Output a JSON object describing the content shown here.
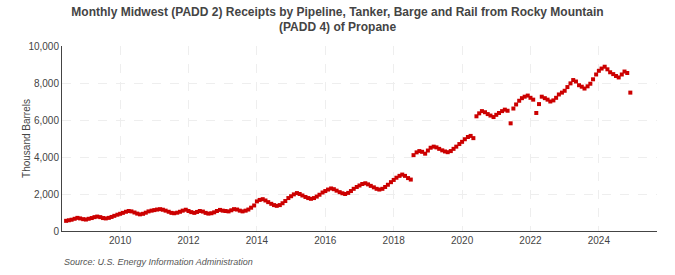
{
  "chart_data": {
    "type": "scatter",
    "title": "Monthly Midwest (PADD 2) Receipts by Pipeline, Tanker, Barge and Rail from Rocky Mountain\n(PADD 4) of Propane",
    "ylabel": "Thousand Barrels",
    "annotations": [
      "Source: U.S. Energy Information Administration"
    ],
    "color": "#cc0000",
    "marker": "square",
    "grid": true,
    "xlim": [
      2008.3,
      2025.7
    ],
    "xticks": [
      2010,
      2012,
      2014,
      2016,
      2018,
      2020,
      2022,
      2024
    ],
    "ylim": [
      0,
      10000
    ],
    "yticks": [
      0,
      {
        "value": 2000,
        "label": "2,000"
      },
      {
        "value": 4000,
        "label": "4,000"
      },
      {
        "value": 6000,
        "label": "6,000"
      },
      {
        "value": 8000,
        "label": "8,000"
      },
      {
        "value": 10000,
        "label": "10,000"
      }
    ],
    "x": [
      2008.42,
      2008.5,
      2008.58,
      2008.67,
      2008.75,
      2008.83,
      2008.92,
      2009.0,
      2009.08,
      2009.17,
      2009.25,
      2009.33,
      2009.42,
      2009.5,
      2009.58,
      2009.67,
      2009.75,
      2009.83,
      2009.92,
      2010.0,
      2010.08,
      2010.17,
      2010.25,
      2010.33,
      2010.42,
      2010.5,
      2010.58,
      2010.67,
      2010.75,
      2010.83,
      2010.92,
      2011.0,
      2011.08,
      2011.17,
      2011.25,
      2011.33,
      2011.42,
      2011.5,
      2011.58,
      2011.67,
      2011.75,
      2011.83,
      2011.92,
      2012.0,
      2012.08,
      2012.17,
      2012.25,
      2012.33,
      2012.42,
      2012.5,
      2012.58,
      2012.67,
      2012.75,
      2012.83,
      2012.92,
      2013.0,
      2013.08,
      2013.17,
      2013.25,
      2013.33,
      2013.42,
      2013.5,
      2013.58,
      2013.67,
      2013.75,
      2013.83,
      2013.92,
      2014.0,
      2014.08,
      2014.17,
      2014.25,
      2014.33,
      2014.42,
      2014.5,
      2014.58,
      2014.67,
      2014.75,
      2014.83,
      2014.92,
      2015.0,
      2015.08,
      2015.17,
      2015.25,
      2015.33,
      2015.42,
      2015.5,
      2015.58,
      2015.67,
      2015.75,
      2015.83,
      2015.92,
      2016.0,
      2016.08,
      2016.17,
      2016.25,
      2016.33,
      2016.42,
      2016.5,
      2016.58,
      2016.67,
      2016.75,
      2016.83,
      2016.92,
      2017.0,
      2017.08,
      2017.17,
      2017.25,
      2017.33,
      2017.42,
      2017.5,
      2017.58,
      2017.67,
      2017.75,
      2017.83,
      2017.92,
      2018.0,
      2018.08,
      2018.17,
      2018.25,
      2018.33,
      2018.42,
      2018.5,
      2018.58,
      2018.67,
      2018.75,
      2018.83,
      2018.92,
      2019.0,
      2019.08,
      2019.17,
      2019.25,
      2019.33,
      2019.42,
      2019.5,
      2019.58,
      2019.67,
      2019.75,
      2019.83,
      2019.92,
      2020.0,
      2020.08,
      2020.17,
      2020.25,
      2020.33,
      2020.42,
      2020.5,
      2020.58,
      2020.67,
      2020.75,
      2020.83,
      2020.92,
      2021.0,
      2021.08,
      2021.17,
      2021.25,
      2021.33,
      2021.42,
      2021.5,
      2021.58,
      2021.67,
      2021.75,
      2021.83,
      2021.92,
      2022.0,
      2022.08,
      2022.17,
      2022.25,
      2022.33,
      2022.42,
      2022.5,
      2022.58,
      2022.67,
      2022.75,
      2022.83,
      2022.92,
      2023.0,
      2023.08,
      2023.17,
      2023.25,
      2023.33,
      2023.42,
      2023.5,
      2023.58,
      2023.67,
      2023.75,
      2023.83,
      2023.92,
      2024.0,
      2024.08,
      2024.17,
      2024.25,
      2024.33,
      2024.42,
      2024.5,
      2024.58,
      2024.67,
      2024.75,
      2024.83,
      2024.92
    ],
    "values": [
      550,
      580,
      610,
      660,
      710,
      680,
      640,
      620,
      660,
      700,
      750,
      780,
      750,
      700,
      680,
      710,
      760,
      820,
      880,
      930,
      980,
      1040,
      1080,
      1060,
      1000,
      940,
      900,
      930,
      990,
      1060,
      1100,
      1130,
      1160,
      1180,
      1150,
      1100,
      1040,
      980,
      960,
      990,
      1040,
      1100,
      1150,
      1080,
      1020,
      980,
      1030,
      1080,
      1050,
      980,
      940,
      960,
      1010,
      1080,
      1140,
      1100,
      1080,
      1060,
      1120,
      1180,
      1160,
      1100,
      1060,
      1100,
      1160,
      1260,
      1380,
      1600,
      1680,
      1720,
      1650,
      1560,
      1470,
      1400,
      1360,
      1400,
      1500,
      1620,
      1780,
      1880,
      1980,
      2050,
      2000,
      1920,
      1840,
      1780,
      1740,
      1780,
      1860,
      1960,
      2080,
      2160,
      2240,
      2300,
      2260,
      2180,
      2100,
      2040,
      2000,
      2060,
      2160,
      2280,
      2380,
      2460,
      2540,
      2580,
      2520,
      2440,
      2360,
      2280,
      2240,
      2280,
      2380,
      2500,
      2640,
      2760,
      2880,
      2980,
      3050,
      2980,
      2860,
      2780,
      4100,
      4250,
      4320,
      4280,
      4180,
      4350,
      4500,
      4560,
      4520,
      4440,
      4360,
      4300,
      4260,
      4320,
      4440,
      4560,
      4700,
      4820,
      4960,
      5080,
      5140,
      5020,
      6200,
      6360,
      6480,
      6420,
      6320,
      6240,
      6160,
      6280,
      6380,
      6480,
      6560,
      6500,
      5820,
      6620,
      6840,
      7040,
      7180,
      7260,
      7320,
      7200,
      7100,
      6380,
      6860,
      7260,
      7180,
      7100,
      7000,
      7060,
      7200,
      7380,
      7480,
      7580,
      7780,
      7980,
      8160,
      8080,
      7880,
      7800,
      7700,
      7820,
      7960,
      8200,
      8460,
      8660,
      8780,
      8880,
      8740,
      8580,
      8480,
      8380,
      8300,
      8460,
      8620,
      8540,
      7480
    ]
  }
}
